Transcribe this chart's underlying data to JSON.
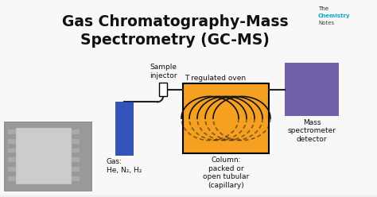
{
  "title_line1": "Gas Chromatography-Mass",
  "title_line2": "Spectrometry (GC-MS)",
  "title_fontsize": 13.5,
  "title_color": "#111111",
  "bg_color": "#f0f0f0",
  "watermark_the": "The",
  "watermark_chem": "Chemistry",
  "watermark_notes": "Notes",
  "wm_color_the": "#222222",
  "wm_color_chem": "#00aacc",
  "wm_color_notes": "#444444",
  "gas_cylinder_color": "#3355bb",
  "oven_color": "#f5a020",
  "oven_border_color": "#000000",
  "detector_color": "#7060aa",
  "injector_color": "#ffffff",
  "injector_border": "#000000",
  "pipe_color": "#222222",
  "label_gas": "Gas:\nHe, N₂, H₂",
  "label_injector": "Sample\ninjector",
  "label_oven_top": "T regulated oven",
  "label_column": "Column:\npacked or\nopen tubular\n(capillary)",
  "label_detector": "Mass\nspectrometer\ndetector",
  "font_size_labels": 6.5,
  "font_size_wm": 5.0,
  "coil_color": "#111111",
  "coil_lw": 1.2
}
